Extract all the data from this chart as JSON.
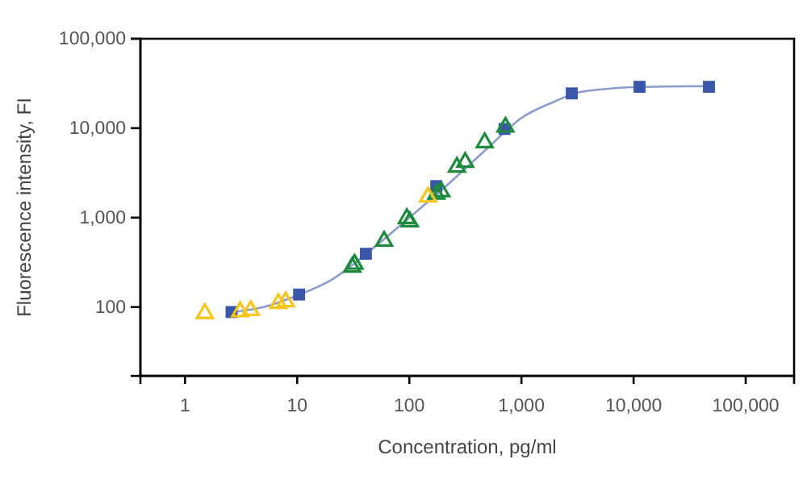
{
  "chart_data": {
    "type": "scatter",
    "xlabel": "Concentration, pg/ml",
    "ylabel": "Fluorescence intensity, FI",
    "log": "xy",
    "grid": false,
    "xlim": [
      0.4,
      270000
    ],
    "xticks": [
      1,
      10,
      100,
      {
        "value": 1000,
        "label": "1,000"
      },
      {
        "value": 10000,
        "label": "10,000"
      },
      {
        "value": 100000,
        "label": "100,000"
      }
    ],
    "ylim": [
      17,
      100000
    ],
    "yticks": [
      100,
      {
        "value": 1000,
        "label": "1,000"
      },
      {
        "value": 10000,
        "label": "10,000"
      },
      {
        "value": 100000,
        "label": "100,000"
      }
    ],
    "series": [
      {
        "type": "line",
        "color": "#8c9ccc",
        "marker": "none",
        "line_style": "solid",
        "x": [
          2.6,
          5,
          10,
          20,
          50,
          100,
          200,
          500,
          1000,
          2000,
          3000,
          5000,
          10000,
          47000
        ],
        "values": [
          88,
          100,
          135,
          200,
          480,
          1000,
          2100,
          6000,
          13000,
          20000,
          24500,
          27000,
          28800,
          29500
        ]
      },
      {
        "color": "#3a56a8",
        "marker": "square",
        "x": [
          2.6,
          10.4,
          41,
          174,
          707,
          2810,
          11300,
          47000
        ],
        "values": [
          88,
          138,
          394,
          2250,
          9800,
          24500,
          29000,
          29000
        ]
      },
      {
        "color": "#1e8a3e",
        "marker": "triangle",
        "x": [
          31,
          32.5,
          59.6,
          95,
          101,
          174,
          193,
          266,
          315,
          470,
          720
        ],
        "values": [
          280,
          302,
          548,
          980,
          900,
          1830,
          1950,
          3680,
          4160,
          6900,
          10300
        ]
      },
      {
        "color": "#f5c518",
        "marker": "triangle",
        "x": [
          1.5,
          3.1,
          3.85,
          6.8,
          7.9,
          147
        ],
        "values": [
          85,
          89,
          92,
          110,
          115,
          1700
        ]
      }
    ]
  }
}
